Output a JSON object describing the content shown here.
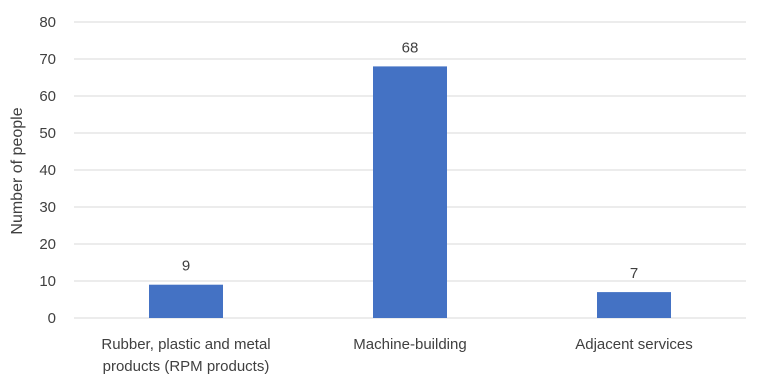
{
  "chart_data": {
    "type": "bar",
    "categories": [
      [
        "Rubber, plastic and metal",
        "products (RPM products)"
      ],
      [
        "Machine-building"
      ],
      [
        "Adjacent services"
      ]
    ],
    "values": [
      9,
      68,
      7
    ],
    "data_labels": [
      "9",
      "68",
      "7"
    ],
    "ylabel": "Number of people",
    "xlabel": "",
    "ylim": [
      0,
      80
    ],
    "yticks": [
      0,
      10,
      20,
      30,
      40,
      50,
      60,
      70,
      80
    ],
    "grid": true,
    "legend": "none",
    "bar_color": "#4472C4",
    "grid_color": "#D9D9D9"
  }
}
